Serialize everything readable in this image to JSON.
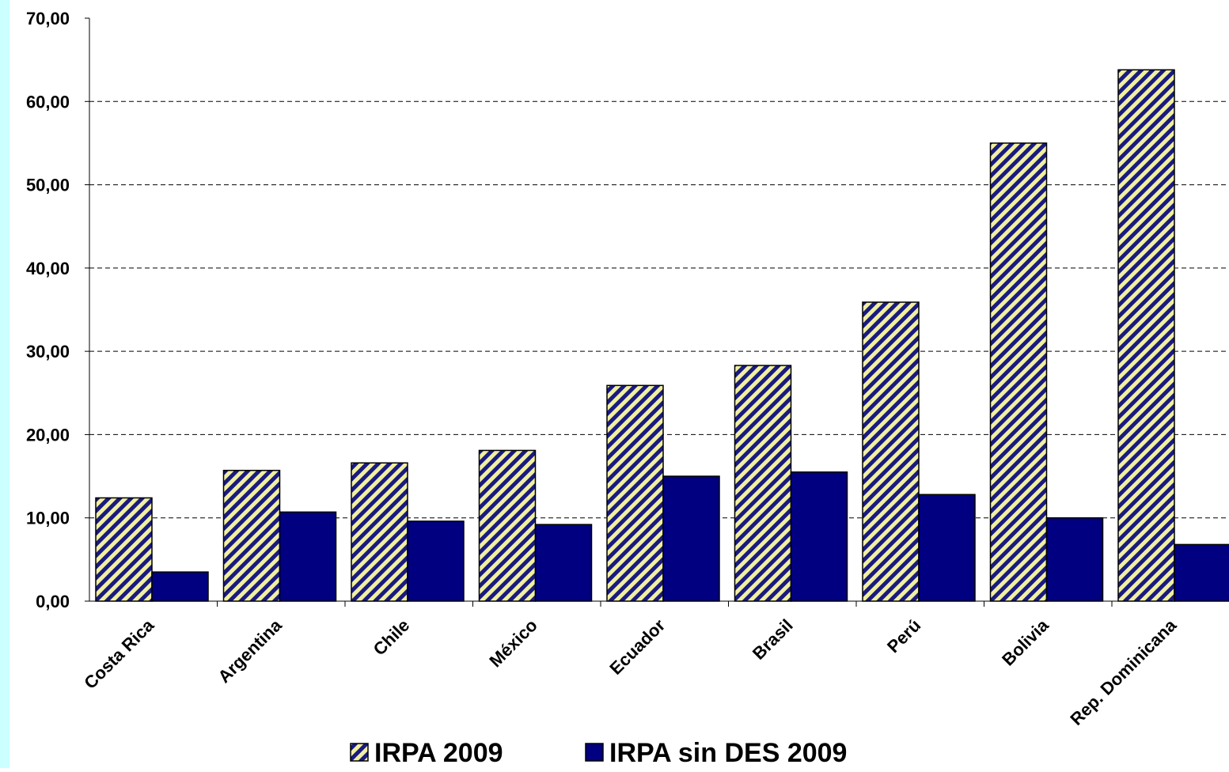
{
  "chart_data": {
    "type": "bar",
    "title": "",
    "xlabel": "",
    "ylabel": "",
    "ylim": [
      0,
      70
    ],
    "yticks": [
      "0,00",
      "10,00",
      "20,00",
      "30,00",
      "40,00",
      "50,00",
      "60,00",
      "70,00"
    ],
    "grid": true,
    "legend_position": "bottom",
    "categories": [
      "Costa Rica",
      "Argentina",
      "Chile",
      "México",
      "Ecuador",
      "Brasil",
      "Perú",
      "Bolivia",
      "Rep. Dominicana"
    ],
    "series": [
      {
        "name": "IRPA 2009",
        "values": [
          12.4,
          15.7,
          16.6,
          18.1,
          25.9,
          28.3,
          35.9,
          55.0,
          63.8
        ],
        "color": "#f0f0a0",
        "pattern": "diagonal-stripes",
        "pattern_color": "#1a1a80"
      },
      {
        "name": "IRPA sin DES 2009",
        "values": [
          3.5,
          10.7,
          9.6,
          9.2,
          15.0,
          15.5,
          12.8,
          10.0,
          6.8
        ],
        "color": "#000080"
      }
    ]
  }
}
